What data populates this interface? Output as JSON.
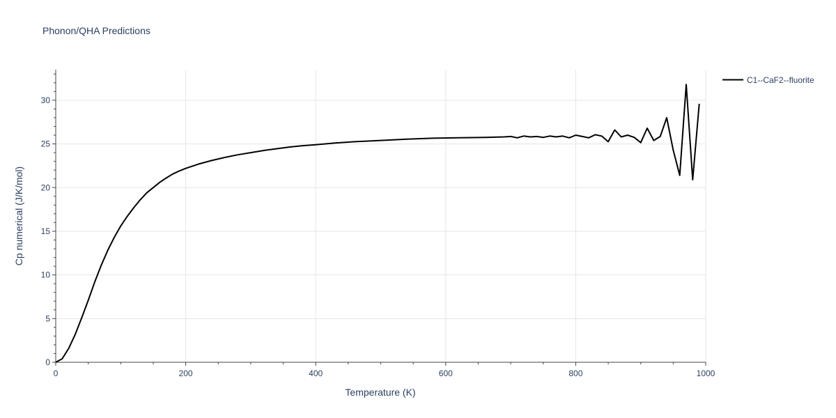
{
  "chart_data": {
    "type": "line",
    "title": "Phonon/QHA Predictions",
    "xlabel": "Temperature (K)",
    "ylabel": "Cp numerical (J/K/mol)",
    "xlim": [
      0,
      1000
    ],
    "ylim": [
      0,
      33.5
    ],
    "x_ticks": [
      0,
      200,
      400,
      600,
      800,
      1000
    ],
    "y_ticks": [
      0,
      5,
      10,
      15,
      20,
      25,
      30
    ],
    "x_tick_labels": [
      "0",
      "200",
      "400",
      "600",
      "800",
      "1000"
    ],
    "y_tick_labels": [
      "0",
      "5",
      "10",
      "15",
      "20",
      "25",
      "30"
    ],
    "grid": true,
    "legend_position": "top-right",
    "series": [
      {
        "name": "C1--CaF2--fluorite",
        "color": "#000000",
        "x": [
          0,
          10,
          20,
          30,
          40,
          50,
          60,
          70,
          80,
          90,
          100,
          110,
          120,
          130,
          140,
          150,
          160,
          170,
          180,
          190,
          200,
          220,
          240,
          260,
          280,
          300,
          320,
          340,
          360,
          380,
          400,
          430,
          460,
          500,
          540,
          580,
          620,
          660,
          690,
          700,
          710,
          720,
          730,
          740,
          750,
          760,
          770,
          780,
          790,
          800,
          810,
          820,
          830,
          840,
          850,
          860,
          870,
          880,
          890,
          900,
          910,
          920,
          930,
          940,
          950,
          960,
          970,
          980,
          990
        ],
        "y": [
          0,
          0.4,
          1.6,
          3.2,
          5.1,
          7.1,
          9.2,
          11.1,
          12.8,
          14.3,
          15.6,
          16.7,
          17.7,
          18.6,
          19.4,
          20.0,
          20.6,
          21.1,
          21.55,
          21.9,
          22.2,
          22.7,
          23.1,
          23.45,
          23.75,
          24.0,
          24.25,
          24.45,
          24.65,
          24.8,
          24.9,
          25.1,
          25.25,
          25.4,
          25.55,
          25.65,
          25.7,
          25.75,
          25.8,
          25.85,
          25.7,
          25.9,
          25.8,
          25.85,
          25.75,
          25.9,
          25.8,
          25.9,
          25.7,
          26.0,
          25.85,
          25.7,
          26.05,
          25.9,
          25.25,
          26.6,
          25.8,
          26.0,
          25.75,
          25.15,
          26.8,
          25.4,
          25.85,
          28.0,
          24.3,
          21.4,
          31.8,
          20.9,
          29.6
        ]
      }
    ]
  }
}
